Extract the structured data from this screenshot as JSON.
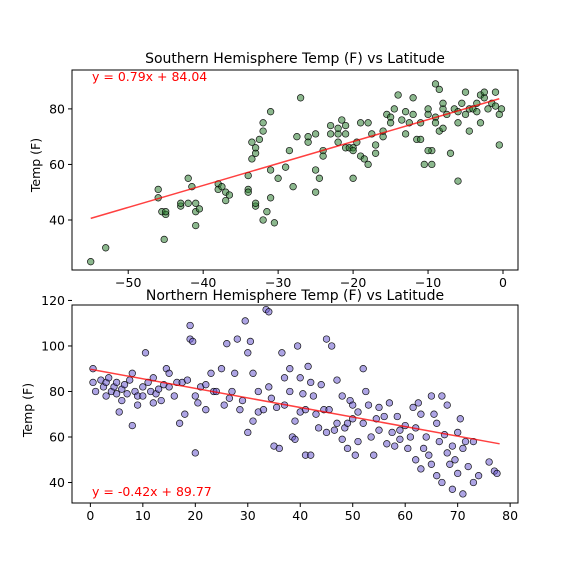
{
  "chart_data": [
    {
      "type": "scatter",
      "title": "Southern Hemisphere Temp (F) vs Latitude",
      "xlabel": "",
      "ylabel": "Temp (F)",
      "xlim": [
        -57.5,
        2
      ],
      "ylim": [
        22,
        94
      ],
      "xticks": [
        -50,
        -40,
        -30,
        -20,
        -10,
        0
      ],
      "yticks": [
        40,
        60,
        80
      ],
      "marker_color": "#2e7d32",
      "line_color": "#ff0000",
      "annotation": "y = 0.79x + 84.04",
      "annotation_color": "#ff0000",
      "regression": {
        "slope": 0.79,
        "intercept": 84.04,
        "x_range": [
          -55,
          -0.5
        ]
      },
      "points": [
        [
          -55,
          25
        ],
        [
          -53,
          30
        ],
        [
          -46,
          51
        ],
        [
          -46,
          48
        ],
        [
          -45.5,
          43
        ],
        [
          -45,
          42
        ],
        [
          -45,
          43
        ],
        [
          -45.2,
          33
        ],
        [
          -43,
          45
        ],
        [
          -43,
          46
        ],
        [
          -42,
          46
        ],
        [
          -42,
          55
        ],
        [
          -41.5,
          52
        ],
        [
          -41,
          38
        ],
        [
          -41,
          43
        ],
        [
          -40.5,
          44
        ],
        [
          -41,
          46
        ],
        [
          -38,
          53
        ],
        [
          -38,
          51
        ],
        [
          -37.5,
          52
        ],
        [
          -37,
          47
        ],
        [
          -37,
          50
        ],
        [
          -36.5,
          49
        ],
        [
          -34,
          56
        ],
        [
          -34,
          51
        ],
        [
          -34,
          50
        ],
        [
          -33.5,
          62
        ],
        [
          -33,
          64
        ],
        [
          -33,
          66
        ],
        [
          -33.5,
          68
        ],
        [
          -32.5,
          69
        ],
        [
          -32,
          72
        ],
        [
          -32,
          75
        ],
        [
          -33,
          45
        ],
        [
          -33,
          46
        ],
        [
          -32,
          40
        ],
        [
          -31.5,
          43
        ],
        [
          -31,
          48
        ],
        [
          -30.5,
          39
        ],
        [
          -31,
          79
        ],
        [
          -30,
          55
        ],
        [
          -31,
          58
        ],
        [
          -29,
          59
        ],
        [
          -28.5,
          65
        ],
        [
          -28,
          52
        ],
        [
          -27.5,
          70
        ],
        [
          -27,
          84
        ],
        [
          -26,
          70
        ],
        [
          -26,
          68
        ],
        [
          -25,
          71
        ],
        [
          -25,
          58
        ],
        [
          -25,
          50
        ],
        [
          -24.5,
          55
        ],
        [
          -24,
          65
        ],
        [
          -24,
          63
        ],
        [
          -23,
          71
        ],
        [
          -23,
          74
        ],
        [
          -22,
          71
        ],
        [
          -22,
          68
        ],
        [
          -22,
          73
        ],
        [
          -21.5,
          76
        ],
        [
          -21,
          74
        ],
        [
          -21,
          71
        ],
        [
          -21,
          66
        ],
        [
          -20.5,
          66
        ],
        [
          -20,
          66
        ],
        [
          -20,
          65
        ],
        [
          -19.5,
          68
        ],
        [
          -19,
          63
        ],
        [
          -19,
          75
        ],
        [
          -18.5,
          62
        ],
        [
          -18,
          60
        ],
        [
          -18,
          75
        ],
        [
          -17.5,
          71
        ],
        [
          -20,
          55
        ],
        [
          -17,
          67
        ],
        [
          -17,
          64
        ],
        [
          -16,
          70
        ],
        [
          -16,
          72
        ],
        [
          -15.5,
          78
        ],
        [
          -15,
          77
        ],
        [
          -15,
          75
        ],
        [
          -14.5,
          80
        ],
        [
          -14,
          85
        ],
        [
          -13.5,
          76
        ],
        [
          -13,
          71
        ],
        [
          -13,
          79
        ],
        [
          -12,
          78
        ],
        [
          -12,
          84
        ],
        [
          -11.5,
          69
        ],
        [
          -11,
          69
        ],
        [
          -11,
          75
        ],
        [
          -10.5,
          60
        ],
        [
          -10,
          78
        ],
        [
          -10,
          80
        ],
        [
          -9.5,
          60
        ],
        [
          -9.5,
          65
        ],
        [
          -9,
          77
        ],
        [
          -9,
          75
        ],
        [
          -9,
          89
        ],
        [
          -8.5,
          72
        ],
        [
          -8.5,
          87
        ],
        [
          -8,
          80
        ],
        [
          -8,
          73
        ],
        [
          -8,
          82
        ],
        [
          -7.5,
          78
        ],
        [
          -7,
          64
        ],
        [
          -6.5,
          80
        ],
        [
          -6,
          79
        ],
        [
          -6,
          54
        ],
        [
          -6,
          75
        ],
        [
          -5.5,
          82
        ],
        [
          -5,
          86
        ],
        [
          -5,
          78
        ],
        [
          -4.5,
          72
        ],
        [
          -4.5,
          80
        ],
        [
          -4,
          80
        ],
        [
          -3.5,
          82
        ],
        [
          -3.5,
          79
        ],
        [
          -3,
          75
        ],
        [
          -3,
          85
        ],
        [
          -2.5,
          84
        ],
        [
          -2.5,
          86
        ],
        [
          -2,
          80
        ],
        [
          -1.5,
          82
        ],
        [
          -1,
          86
        ],
        [
          -1,
          81
        ],
        [
          -0.5,
          78
        ],
        [
          -0.5,
          67
        ],
        [
          -0.2,
          80
        ],
        [
          -10,
          65
        ],
        [
          -12.5,
          75
        ]
      ]
    },
    {
      "type": "scatter",
      "title": "Northern Hemisphere Temp (F) vs Latitude",
      "xlabel": "",
      "ylabel": "Temp (F)",
      "xlim": [
        -3.5,
        81.5
      ],
      "ylim": [
        31,
        118
      ],
      "xticks": [
        0,
        10,
        20,
        30,
        40,
        50,
        60,
        70,
        80
      ],
      "yticks": [
        40,
        60,
        80,
        100,
        120
      ],
      "marker_color": "#6a5acd",
      "line_color": "#ff0000",
      "annotation": "y = -0.42x + 89.77",
      "annotation_color": "#ff0000",
      "regression": {
        "slope": -0.42,
        "intercept": 89.77,
        "x_range": [
          0,
          78
        ]
      },
      "points": [
        [
          0.5,
          90
        ],
        [
          0.5,
          84
        ],
        [
          1,
          80
        ],
        [
          2,
          85
        ],
        [
          2.5,
          82
        ],
        [
          3,
          84
        ],
        [
          3,
          78
        ],
        [
          3.5,
          86
        ],
        [
          4,
          80
        ],
        [
          4.5,
          82
        ],
        [
          5,
          79
        ],
        [
          5,
          84
        ],
        [
          5.5,
          71
        ],
        [
          6,
          81
        ],
        [
          6,
          76
        ],
        [
          6.5,
          83
        ],
        [
          7,
          79
        ],
        [
          7.5,
          85
        ],
        [
          8,
          88
        ],
        [
          8,
          65
        ],
        [
          8.5,
          80
        ],
        [
          9,
          78
        ],
        [
          9,
          74
        ],
        [
          10,
          82
        ],
        [
          10,
          78
        ],
        [
          10.5,
          97
        ],
        [
          11,
          84
        ],
        [
          11.5,
          80
        ],
        [
          12,
          86
        ],
        [
          12,
          75
        ],
        [
          12.5,
          79
        ],
        [
          13,
          81
        ],
        [
          13.5,
          76
        ],
        [
          14,
          83
        ],
        [
          14.5,
          90
        ],
        [
          15,
          82
        ],
        [
          15,
          88
        ],
        [
          16,
          78
        ],
        [
          16.5,
          84
        ],
        [
          17,
          66
        ],
        [
          17.5,
          84
        ],
        [
          18,
          70
        ],
        [
          18.5,
          85
        ],
        [
          19,
          109
        ],
        [
          19,
          103
        ],
        [
          19.5,
          102
        ],
        [
          20,
          78
        ],
        [
          20,
          53
        ],
        [
          20.5,
          75
        ],
        [
          21,
          82
        ],
        [
          22,
          72
        ],
        [
          22,
          83
        ],
        [
          23,
          88
        ],
        [
          23.5,
          80
        ],
        [
          24,
          80
        ],
        [
          25,
          90
        ],
        [
          25.5,
          74
        ],
        [
          26,
          101
        ],
        [
          26.5,
          77
        ],
        [
          27,
          80
        ],
        [
          27.5,
          88
        ],
        [
          28,
          103
        ],
        [
          28.5,
          72
        ],
        [
          29,
          76
        ],
        [
          29.5,
          111
        ],
        [
          30,
          97
        ],
        [
          30,
          62
        ],
        [
          30.5,
          102
        ],
        [
          31,
          67
        ],
        [
          31,
          88
        ],
        [
          32,
          80
        ],
        [
          32,
          71
        ],
        [
          33,
          72
        ],
        [
          33.5,
          116
        ],
        [
          34,
          115
        ],
        [
          34,
          82
        ],
        [
          34.5,
          77
        ],
        [
          35,
          56
        ],
        [
          35.5,
          73
        ],
        [
          36,
          55
        ],
        [
          36.5,
          97
        ],
        [
          37,
          86
        ],
        [
          37,
          74
        ],
        [
          38,
          90
        ],
        [
          38,
          80
        ],
        [
          38.5,
          60
        ],
        [
          39,
          67
        ],
        [
          39,
          59
        ],
        [
          39.5,
          100
        ],
        [
          40,
          71
        ],
        [
          40,
          86
        ],
        [
          40.5,
          79
        ],
        [
          41,
          72
        ],
        [
          41,
          52
        ],
        [
          41.5,
          91
        ],
        [
          42,
          52
        ],
        [
          42,
          84
        ],
        [
          42.5,
          78
        ],
        [
          43,
          70
        ],
        [
          43.5,
          64
        ],
        [
          44,
          83
        ],
        [
          44.5,
          72
        ],
        [
          45,
          103
        ],
        [
          45,
          62
        ],
        [
          45.5,
          72
        ],
        [
          46,
          100
        ],
        [
          46.5,
          63
        ],
        [
          47,
          66
        ],
        [
          47,
          85
        ],
        [
          48,
          78
        ],
        [
          48,
          59
        ],
        [
          48.5,
          64
        ],
        [
          49,
          66
        ],
        [
          49,
          55
        ],
        [
          49.5,
          76
        ],
        [
          50,
          74
        ],
        [
          50,
          68
        ],
        [
          50.5,
          52
        ],
        [
          51,
          58
        ],
        [
          51,
          71
        ],
        [
          52,
          90
        ],
        [
          52,
          66
        ],
        [
          52.5,
          80
        ],
        [
          53,
          74
        ],
        [
          53.5,
          60
        ],
        [
          54,
          52
        ],
        [
          54.5,
          68
        ],
        [
          55,
          63
        ],
        [
          55,
          73
        ],
        [
          56,
          69
        ],
        [
          56.5,
          57
        ],
        [
          57,
          75
        ],
        [
          57.5,
          62
        ],
        [
          58,
          56
        ],
        [
          58.5,
          69
        ],
        [
          59,
          63
        ],
        [
          59,
          59
        ],
        [
          60,
          65
        ],
        [
          60.5,
          55
        ],
        [
          61,
          60
        ],
        [
          61.5,
          73
        ],
        [
          62,
          50
        ],
        [
          62,
          64
        ],
        [
          62.5,
          75
        ],
        [
          63,
          70
        ],
        [
          63,
          46
        ],
        [
          63.5,
          55
        ],
        [
          64,
          60
        ],
        [
          64.5,
          52
        ],
        [
          65,
          48
        ],
        [
          65,
          78
        ],
        [
          65.5,
          70
        ],
        [
          66,
          66
        ],
        [
          66,
          43
        ],
        [
          66.5,
          58
        ],
        [
          67,
          78
        ],
        [
          67,
          40
        ],
        [
          67.5,
          61
        ],
        [
          68,
          53
        ],
        [
          68,
          74
        ],
        [
          68.5,
          48
        ],
        [
          69,
          56
        ],
        [
          69,
          37
        ],
        [
          69.5,
          50
        ],
        [
          70,
          62
        ],
        [
          70,
          44
        ],
        [
          70.5,
          68
        ],
        [
          71,
          55
        ],
        [
          71,
          35
        ],
        [
          71.5,
          58
        ],
        [
          72,
          47
        ],
        [
          73,
          58
        ],
        [
          73,
          40
        ],
        [
          74,
          43
        ],
        [
          76,
          49
        ],
        [
          77,
          45
        ],
        [
          77.5,
          44
        ]
      ]
    }
  ]
}
